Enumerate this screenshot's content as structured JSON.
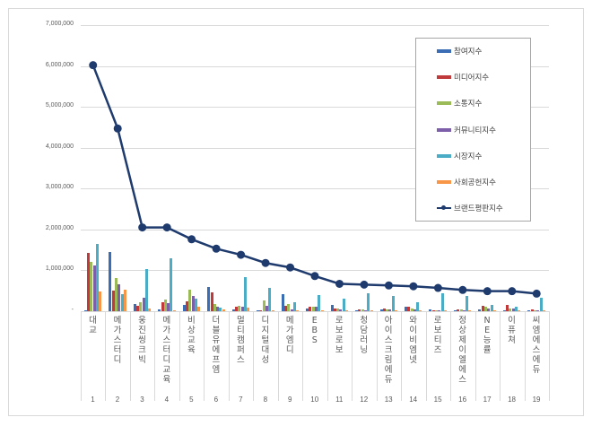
{
  "chart_data": {
    "type": "bar",
    "title": "",
    "xlabel": "",
    "ylabel": "",
    "ylim": [
      0,
      7000000
    ],
    "yticks": [
      "-",
      "1,000,000",
      "2,000,000",
      "3,000,000",
      "4,000,000",
      "5,000,000",
      "6,000,000",
      "7,000,000"
    ],
    "grid": true,
    "legend_position": "upper-right",
    "ranks": [
      "1",
      "2",
      "3",
      "4",
      "5",
      "6",
      "7",
      "8",
      "9",
      "10",
      "11",
      "12",
      "13",
      "14",
      "15",
      "16",
      "17",
      "18",
      "19"
    ],
    "categories": [
      "대교",
      "메가스터디",
      "웅진씽크빅",
      "메가스터디교육",
      "비상교육",
      "더블유에프엠",
      "멀티캠퍼스",
      "디지털대성",
      "메가엠디",
      "EBS",
      "로보로보",
      "청담러닝",
      "아이스크림에듀",
      "와이비엠넷",
      "로보티즈",
      "정상제이엘에스",
      "NE능률",
      "이퓨쳐",
      "씨엠에스에듀"
    ],
    "series": [
      {
        "name": "참여지수",
        "kind": "bar",
        "color": "#3b6db5",
        "values": [
          30000,
          1450000,
          170000,
          40000,
          160000,
          600000,
          50000,
          20000,
          420000,
          60000,
          150000,
          20000,
          50000,
          110000,
          40000,
          30000,
          40000,
          30000,
          20000
        ]
      },
      {
        "name": "미디어지수",
        "kind": "bar",
        "color": "#c0393b",
        "values": [
          1430000,
          500000,
          130000,
          230000,
          240000,
          460000,
          100000,
          30000,
          140000,
          100000,
          70000,
          50000,
          60000,
          110000,
          30000,
          40000,
          130000,
          160000,
          40000
        ]
      },
      {
        "name": "소통지수",
        "kind": "bar",
        "color": "#9bbb59",
        "values": [
          1210000,
          810000,
          220000,
          290000,
          520000,
          180000,
          130000,
          260000,
          170000,
          120000,
          70000,
          50000,
          40000,
          70000,
          30000,
          40000,
          100000,
          60000,
          30000
        ]
      },
      {
        "name": "커뮤니티지수",
        "kind": "bar",
        "color": "#7d5ea8",
        "values": [
          1120000,
          660000,
          330000,
          200000,
          370000,
          110000,
          120000,
          130000,
          50000,
          120000,
          40000,
          30000,
          40000,
          40000,
          20000,
          30000,
          60000,
          70000,
          30000
        ]
      },
      {
        "name": "시장지수",
        "kind": "bar",
        "color": "#4bacc6",
        "values": [
          1650000,
          420000,
          1030000,
          1290000,
          300000,
          90000,
          830000,
          570000,
          220000,
          390000,
          300000,
          440000,
          370000,
          220000,
          430000,
          370000,
          150000,
          110000,
          330000
        ]
      },
      {
        "name": "사회공헌지수",
        "kind": "bar",
        "color": "#f79646",
        "values": [
          480000,
          530000,
          70000,
          20000,
          110000,
          50000,
          80000,
          30000,
          20000,
          20000,
          10000,
          20000,
          20000,
          10000,
          10000,
          10000,
          20000,
          20000,
          10000
        ]
      },
      {
        "name": "브랜드평판지수",
        "kind": "line",
        "color": "#1f3b6e",
        "values": [
          6020000,
          4470000,
          2050000,
          2050000,
          1760000,
          1530000,
          1380000,
          1180000,
          1070000,
          860000,
          670000,
          650000,
          630000,
          610000,
          570000,
          520000,
          490000,
          490000,
          430000
        ]
      }
    ]
  }
}
